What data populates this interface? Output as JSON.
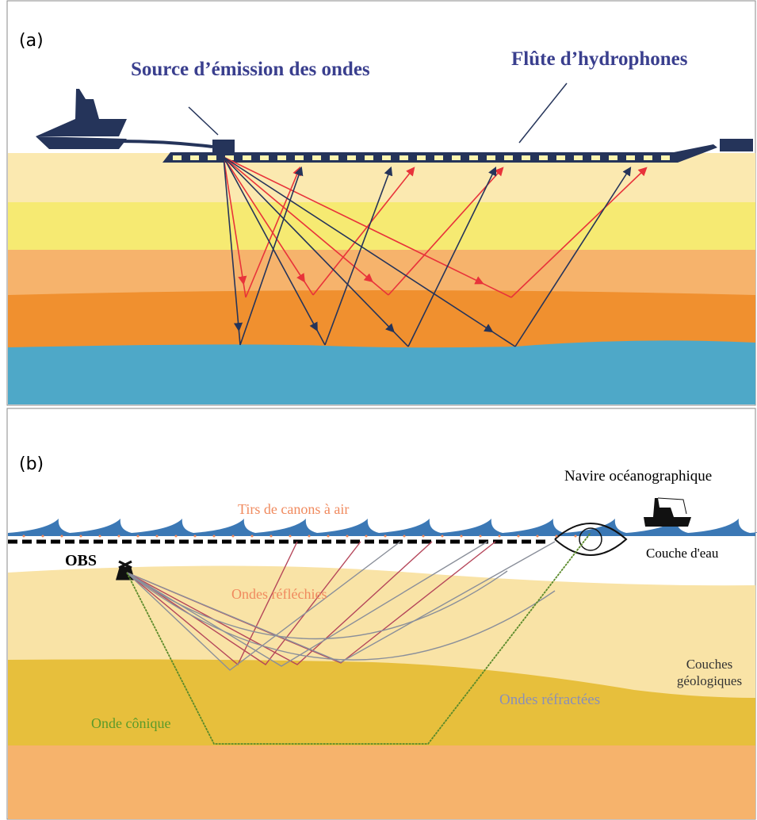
{
  "panel_a": {
    "label": "(a)",
    "source_label": "Source d’émission des ondes",
    "streamer_label": "Flûte d’hydrophones"
  },
  "panel_b": {
    "label": "(b)",
    "ship_label": "Navire océanographique",
    "airgun_label": "Tirs de canons à air",
    "water_label": "Couche d'eau",
    "obs_label": "OBS",
    "reflected_label": "Ondes réfléchies",
    "layers_label": [
      "Couches",
      "géologiques"
    ],
    "refracted_label": "Ondes réfractées",
    "conic_label": "Onde cônique"
  }
}
